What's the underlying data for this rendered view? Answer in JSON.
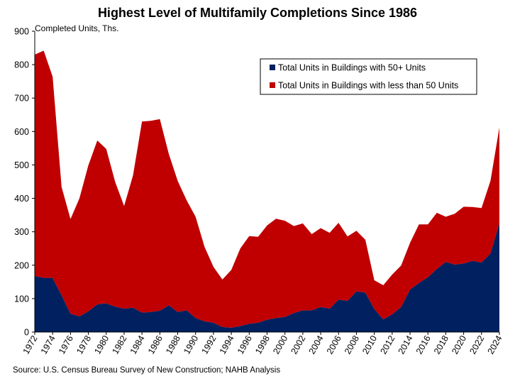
{
  "chart_data": {
    "type": "area",
    "stacked": true,
    "title": "Highest Level of Multifamily Completions Since 1986",
    "ylabel": "Completed Units, Ths.",
    "source": "Source: U.S. Census Bureau Survey of New Construction; NAHB Analysis",
    "ylim": [
      0,
      900
    ],
    "yticks": [
      "0",
      "100",
      "200",
      "300",
      "400",
      "500",
      "600",
      "700",
      "800",
      "900"
    ],
    "xticks": [
      "1972",
      "1974",
      "1976",
      "1978",
      "1980",
      "1982",
      "1984",
      "1986",
      "1988",
      "1990",
      "1992",
      "1994",
      "1996",
      "1998",
      "2000",
      "2002",
      "2004",
      "2006",
      "2008",
      "2010",
      "2012",
      "2014",
      "2016",
      "2018",
      "2020",
      "2022",
      "2024"
    ],
    "grid": false,
    "legend_position": "top-right",
    "x": [
      1972,
      1973,
      1974,
      1975,
      1976,
      1977,
      1978,
      1979,
      1980,
      1981,
      1982,
      1983,
      1984,
      1985,
      1986,
      1987,
      1988,
      1989,
      1990,
      1991,
      1992,
      1993,
      1994,
      1995,
      1996,
      1997,
      1998,
      1999,
      2000,
      2001,
      2002,
      2003,
      2004,
      2005,
      2006,
      2007,
      2008,
      2009,
      2010,
      2011,
      2012,
      2013,
      2014,
      2015,
      2016,
      2017,
      2018,
      2019,
      2020,
      2021,
      2022,
      2023,
      2024
    ],
    "series": [
      {
        "name": "Total Units in Buildings with 50+ Units",
        "color": "#002060",
        "values": [
          168,
          162,
          162,
          110,
          55,
          47,
          62,
          83,
          86,
          76,
          70,
          73,
          58,
          60,
          64,
          80,
          60,
          65,
          42,
          32,
          28,
          15,
          13,
          18,
          25,
          28,
          37,
          42,
          45,
          57,
          65,
          65,
          75,
          70,
          97,
          93,
          122,
          118,
          69,
          38,
          53,
          75,
          127,
          147,
          164,
          189,
          210,
          202,
          205,
          213,
          208,
          235,
          326
        ]
      },
      {
        "name": "Total Units in Buildings with less than 50 Units",
        "color": "#c00000",
        "values": [
          662,
          680,
          602,
          324,
          283,
          353,
          437,
          490,
          462,
          373,
          307,
          396,
          572,
          572,
          573,
          453,
          392,
          329,
          303,
          223,
          167,
          142,
          173,
          232,
          262,
          257,
          282,
          297,
          288,
          260,
          260,
          228,
          236,
          227,
          230,
          193,
          181,
          158,
          86,
          102,
          119,
          124,
          140,
          175,
          158,
          168,
          135,
          152,
          170,
          161,
          163,
          217,
          286
        ]
      }
    ]
  }
}
